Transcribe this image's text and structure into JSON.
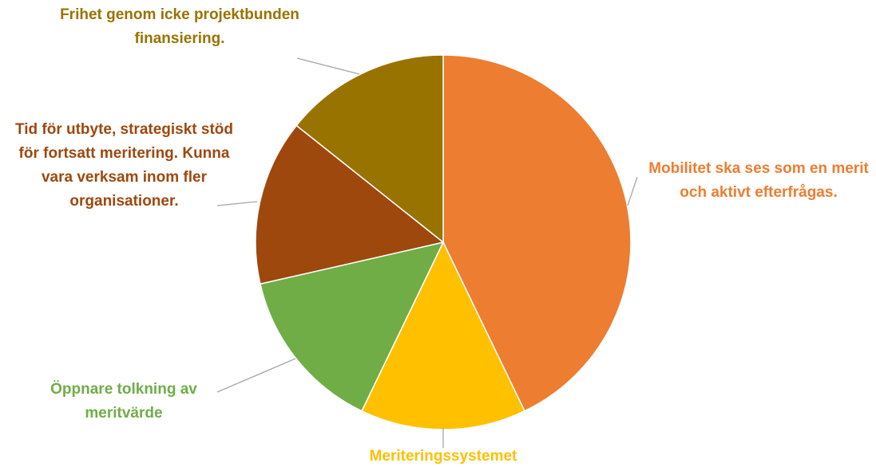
{
  "chart_data": {
    "type": "pie",
    "categories": [
      "Mobilitet ska ses som en merit och aktivt efterfrågas.",
      "Meriteringssystemet",
      "Öppnare tolkning av meritvärde",
      "Tid för utbyte, strategiskt stöd för fortsatt meritering. Kunna vara verksam inom fler organisationer.",
      "Frihet genom icke projektbunden finansiering."
    ],
    "values": [
      42.9,
      14.3,
      14.3,
      14.3,
      14.3
    ],
    "colors": [
      "#ED7D31",
      "#FFC000",
      "#70AD47",
      "#9E480E",
      "#997300"
    ]
  }
}
